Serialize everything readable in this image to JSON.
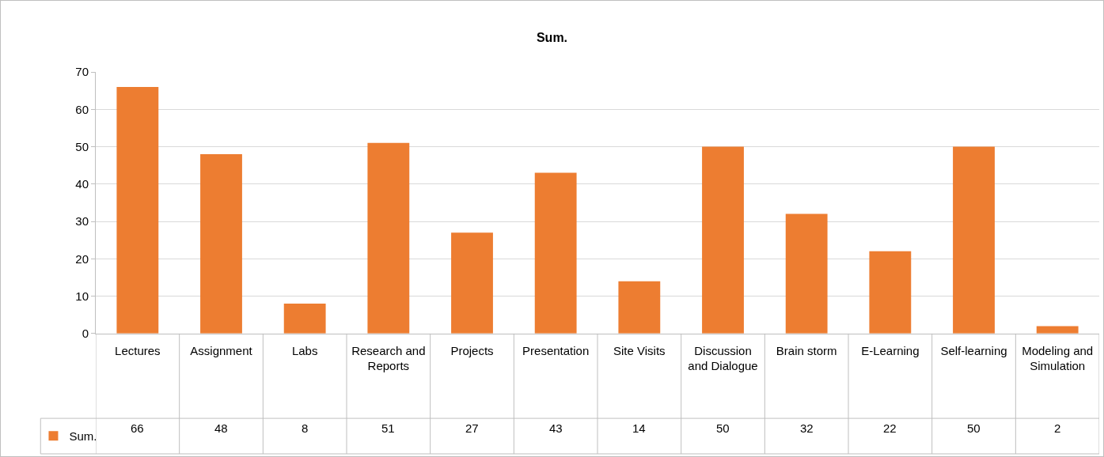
{
  "chart_data": {
    "type": "bar",
    "title": "Sum.",
    "categories": [
      "Lectures",
      "Assignment",
      "Labs",
      "Research and Reports",
      "Projects",
      "Presentation",
      "Site Visits",
      "Discussion and Dialogue",
      "Brain storm",
      "E-Learning",
      "Self-learning",
      "Modeling and Simulation"
    ],
    "series": [
      {
        "name": "Sum.",
        "color": "#ed7d31",
        "values": [
          66,
          48,
          8,
          51,
          27,
          43,
          14,
          50,
          32,
          22,
          50,
          2
        ]
      }
    ],
    "ylim": [
      0,
      70
    ],
    "yticks": [
      0,
      10,
      20,
      30,
      40,
      50,
      60,
      70
    ],
    "grid": "y",
    "legend": "bottom left",
    "data_labels": true
  }
}
